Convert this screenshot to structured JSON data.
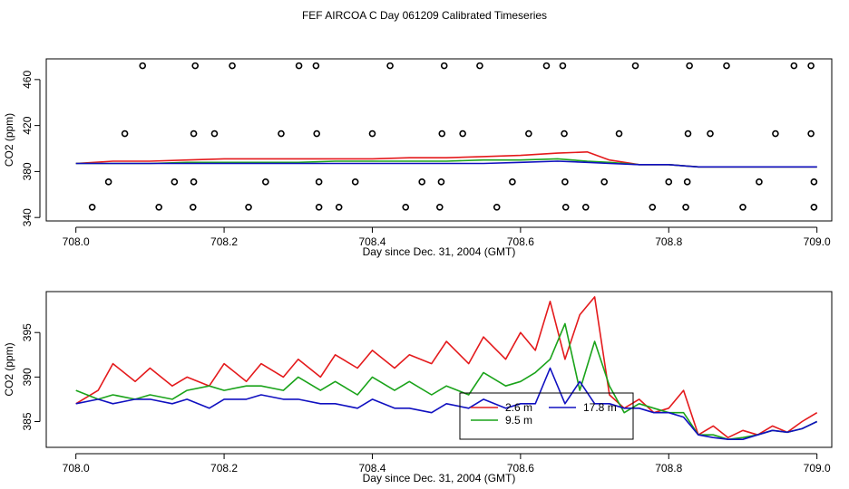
{
  "page_title": "FEF AIRCOA C  Day 061209  Calibrated Timeseries",
  "chart_data": [
    {
      "type": "scatter+line",
      "xlabel": "Day since Dec. 31, 2004 (GMT)",
      "ylabel": "CO2 (ppm)",
      "xlim": [
        707.96,
        709.02
      ],
      "ylim": [
        337,
        478
      ],
      "xticks": [
        708.0,
        708.2,
        708.4,
        708.6,
        708.8,
        709.0
      ],
      "xtick_labels": [
        "708.0",
        "708.2",
        "708.4",
        "708.6",
        "708.8",
        "709.0"
      ],
      "yticks": [
        340,
        380,
        420,
        460
      ],
      "ytick_labels": [
        "340",
        "380",
        "420",
        "460"
      ],
      "calibration_points": {
        "name": "calibration standards",
        "marker": "open-circle",
        "x": [
          708.09,
          708.161,
          708.211,
          708.301,
          708.324,
          708.424,
          708.497,
          708.545,
          708.635,
          708.657,
          708.755,
          708.828,
          708.878,
          708.969,
          708.992,
          708.066,
          708.159,
          708.187,
          708.277,
          708.325,
          708.4,
          708.494,
          708.522,
          708.611,
          708.659,
          708.733,
          708.826,
          708.856,
          708.944,
          708.992,
          708.044,
          708.133,
          708.159,
          708.256,
          708.328,
          708.377,
          708.467,
          708.493,
          708.589,
          708.66,
          708.713,
          708.8,
          708.825,
          708.922,
          708.996,
          708.022,
          708.112,
          708.158,
          708.233,
          708.328,
          708.355,
          708.445,
          708.491,
          708.568,
          708.661,
          708.688,
          708.778,
          708.823,
          708.9,
          708.996
        ],
        "y": [
          472,
          472,
          472,
          472,
          472,
          472,
          472,
          472,
          472,
          472,
          472,
          472,
          472,
          472,
          472,
          413,
          413,
          413,
          413,
          413,
          413,
          413,
          413,
          413,
          413,
          413,
          413,
          413,
          413,
          413,
          371,
          371,
          371,
          371,
          371,
          371,
          371,
          371,
          371,
          371,
          371,
          371,
          371,
          371,
          371,
          349,
          349,
          349,
          349,
          349,
          349,
          349,
          349,
          349,
          349,
          349,
          349,
          349,
          349,
          349
        ]
      },
      "series": [
        {
          "name": "2.6 m",
          "color": "#e41a1c",
          "x": [
            708.0,
            708.05,
            708.1,
            708.15,
            708.2,
            708.25,
            708.3,
            708.35,
            708.4,
            708.45,
            708.5,
            708.55,
            708.6,
            708.65,
            708.69,
            708.72,
            708.76,
            708.8,
            708.84,
            708.88,
            708.92,
            708.96,
            709.0
          ],
          "values": [
            387,
            389,
            389,
            390,
            391,
            391,
            391,
            391,
            391,
            392,
            392,
            393,
            394,
            396,
            397,
            390,
            386,
            386,
            384,
            384,
            384,
            384,
            384
          ]
        },
        {
          "name": "9.5 m",
          "color": "#1aa31a",
          "x": [
            708.0,
            708.05,
            708.1,
            708.15,
            708.2,
            708.25,
            708.3,
            708.35,
            708.4,
            708.45,
            708.5,
            708.55,
            708.6,
            708.65,
            708.69,
            708.72,
            708.76,
            708.8,
            708.84,
            708.88,
            708.92,
            708.96,
            709.0
          ],
          "values": [
            387,
            387,
            387,
            388,
            388,
            388,
            388,
            389,
            389,
            389,
            389,
            390,
            390,
            391,
            389,
            388,
            386,
            386,
            384,
            384,
            384,
            384,
            384
          ]
        },
        {
          "name": "17.8 m",
          "color": "#1010c0",
          "x": [
            708.0,
            708.05,
            708.1,
            708.15,
            708.2,
            708.25,
            708.3,
            708.35,
            708.4,
            708.45,
            708.5,
            708.55,
            708.6,
            708.65,
            708.69,
            708.72,
            708.76,
            708.8,
            708.84,
            708.88,
            708.92,
            708.96,
            709.0
          ],
          "values": [
            387,
            387,
            387,
            387,
            387,
            387,
            387,
            387,
            387,
            387,
            387,
            387,
            388,
            389,
            388,
            387,
            386,
            386,
            384,
            384,
            384,
            384,
            384
          ]
        }
      ]
    },
    {
      "type": "line",
      "xlabel": "Day since Dec. 31, 2004 (GMT)",
      "ylabel": "CO2 (ppm)",
      "xlim": [
        707.96,
        709.02
      ],
      "ylim": [
        382.1,
        399.6
      ],
      "xticks": [
        708.0,
        708.2,
        708.4,
        708.6,
        708.8,
        709.0
      ],
      "xtick_labels": [
        "708.0",
        "708.2",
        "708.4",
        "708.6",
        "708.8",
        "709.0"
      ],
      "yticks": [
        385,
        390,
        395
      ],
      "ytick_labels": [
        "385",
        "390",
        "395"
      ],
      "legend_position": "lower-center",
      "series": [
        {
          "name": "2.6 m",
          "color": "#e41a1c",
          "x": [
            708.0,
            708.03,
            708.05,
            708.08,
            708.1,
            708.13,
            708.15,
            708.18,
            708.2,
            708.23,
            708.25,
            708.28,
            708.3,
            708.33,
            708.35,
            708.38,
            708.4,
            708.43,
            708.45,
            708.48,
            708.5,
            708.53,
            708.55,
            708.58,
            708.6,
            708.62,
            708.64,
            708.66,
            708.68,
            708.7,
            708.72,
            708.74,
            708.76,
            708.78,
            708.8,
            708.82,
            708.84,
            708.86,
            708.88,
            708.9,
            708.92,
            708.94,
            708.96,
            708.98,
            709.0
          ],
          "values": [
            387.0,
            388.5,
            391.5,
            389.5,
            391.0,
            389.0,
            390.0,
            389.0,
            391.5,
            389.5,
            391.5,
            390.0,
            392.0,
            390.0,
            392.5,
            391.0,
            393.0,
            391.0,
            392.5,
            391.5,
            394.0,
            391.5,
            394.5,
            392.0,
            395.0,
            393.0,
            398.5,
            392.0,
            397.0,
            399.0,
            388.0,
            386.5,
            387.5,
            386.0,
            386.5,
            388.5,
            383.5,
            384.5,
            383.2,
            384.0,
            383.5,
            384.5,
            383.8,
            385.0,
            386.0
          ]
        },
        {
          "name": "9.5 m",
          "color": "#1aa31a",
          "x": [
            708.0,
            708.03,
            708.05,
            708.08,
            708.1,
            708.13,
            708.15,
            708.18,
            708.2,
            708.23,
            708.25,
            708.28,
            708.3,
            708.33,
            708.35,
            708.38,
            708.4,
            708.43,
            708.45,
            708.48,
            708.5,
            708.53,
            708.55,
            708.58,
            708.6,
            708.62,
            708.64,
            708.66,
            708.68,
            708.7,
            708.72,
            708.74,
            708.76,
            708.78,
            708.8,
            708.82,
            708.84,
            708.86,
            708.88,
            708.9,
            708.92,
            708.94,
            708.96,
            708.98,
            709.0
          ],
          "values": [
            388.5,
            387.5,
            388.0,
            387.5,
            388.0,
            387.5,
            388.5,
            389.0,
            388.5,
            389.0,
            389.0,
            388.5,
            390.0,
            388.5,
            389.5,
            388.0,
            390.0,
            388.5,
            389.5,
            388.0,
            389.0,
            388.0,
            390.5,
            389.0,
            389.5,
            390.5,
            392.0,
            396.0,
            388.5,
            394.0,
            389.0,
            386.0,
            387.0,
            386.5,
            386.0,
            386.0,
            383.5,
            383.5,
            383.0,
            383.2,
            383.5,
            384.0,
            383.8,
            384.2,
            385.0
          ]
        },
        {
          "name": "17.8 m",
          "color": "#1010c0",
          "x": [
            708.0,
            708.03,
            708.05,
            708.08,
            708.1,
            708.13,
            708.15,
            708.18,
            708.2,
            708.23,
            708.25,
            708.28,
            708.3,
            708.33,
            708.35,
            708.38,
            708.4,
            708.43,
            708.45,
            708.48,
            708.5,
            708.53,
            708.55,
            708.58,
            708.6,
            708.62,
            708.64,
            708.66,
            708.68,
            708.7,
            708.72,
            708.74,
            708.76,
            708.78,
            708.8,
            708.82,
            708.84,
            708.86,
            708.88,
            708.9,
            708.92,
            708.94,
            708.96,
            708.98,
            709.0
          ],
          "values": [
            387.0,
            387.5,
            387.0,
            387.5,
            387.5,
            387.0,
            387.5,
            386.5,
            387.5,
            387.5,
            388.0,
            387.5,
            387.5,
            387.0,
            387.0,
            386.5,
            387.5,
            386.5,
            386.5,
            386.0,
            387.0,
            386.5,
            387.5,
            386.5,
            387.0,
            387.0,
            391.0,
            387.0,
            389.5,
            387.0,
            387.0,
            386.5,
            386.5,
            386.0,
            386.0,
            385.5,
            383.5,
            383.2,
            383.0,
            383.0,
            383.5,
            384.0,
            383.8,
            384.2,
            385.0
          ]
        }
      ]
    }
  ]
}
